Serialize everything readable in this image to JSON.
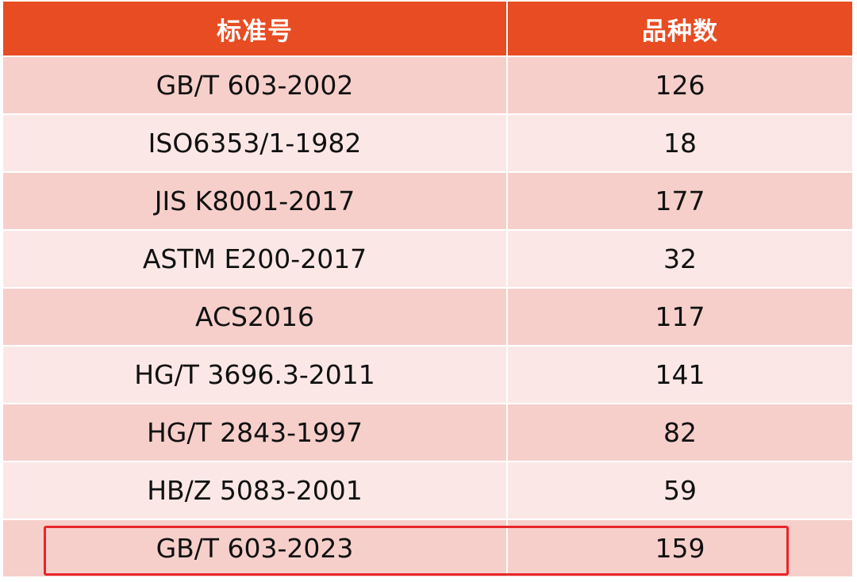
{
  "table": {
    "headers": [
      "标准号",
      "品种数"
    ],
    "rows": [
      {
        "standard": "GB/T 603-2002",
        "count": "126"
      },
      {
        "standard": "ISO6353/1-1982",
        "count": "18"
      },
      {
        "standard": "JIS K8001-2017",
        "count": "177"
      },
      {
        "standard": "ASTM E200-2017",
        "count": "32"
      },
      {
        "standard": "ACS2016",
        "count": "117"
      },
      {
        "standard": "HG/T 3696.3-2011",
        "count": "141"
      },
      {
        "standard": "HG/T 2843-1997",
        "count": "82"
      },
      {
        "standard": "HB/Z 5083-2001",
        "count": "59"
      },
      {
        "standard": "GB/T 603-2023",
        "count": "159"
      }
    ]
  },
  "colors": {
    "header_bg": "#e84c22",
    "row_dark": "#f6cfcb",
    "row_light": "#fbe8e6",
    "highlight_border": "#e8262a"
  },
  "highlighted_row_index": 8
}
